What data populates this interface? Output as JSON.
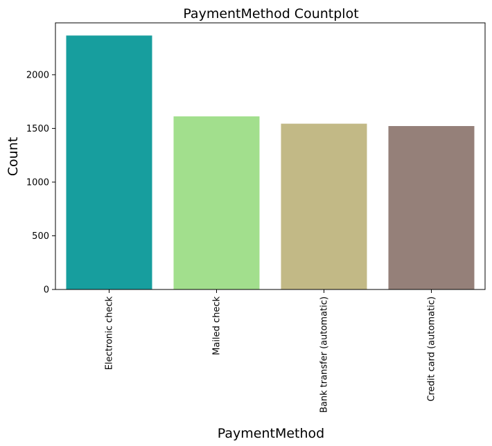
{
  "chart_data": {
    "type": "bar",
    "title": "PaymentMethod Countplot",
    "xlabel": "PaymentMethod",
    "ylabel": "Count",
    "categories": [
      "Electronic check",
      "Mailed check",
      "Bank transfer (automatic)",
      "Credit card (automatic)"
    ],
    "values": [
      2365,
      1612,
      1544,
      1522
    ],
    "colors": [
      "#179e9e",
      "#a2df8d",
      "#c2b986",
      "#958079"
    ],
    "yticks": [
      0,
      500,
      1000,
      1500,
      2000
    ],
    "ylim": [
      0,
      2483
    ],
    "grid": false,
    "legend": "none"
  }
}
